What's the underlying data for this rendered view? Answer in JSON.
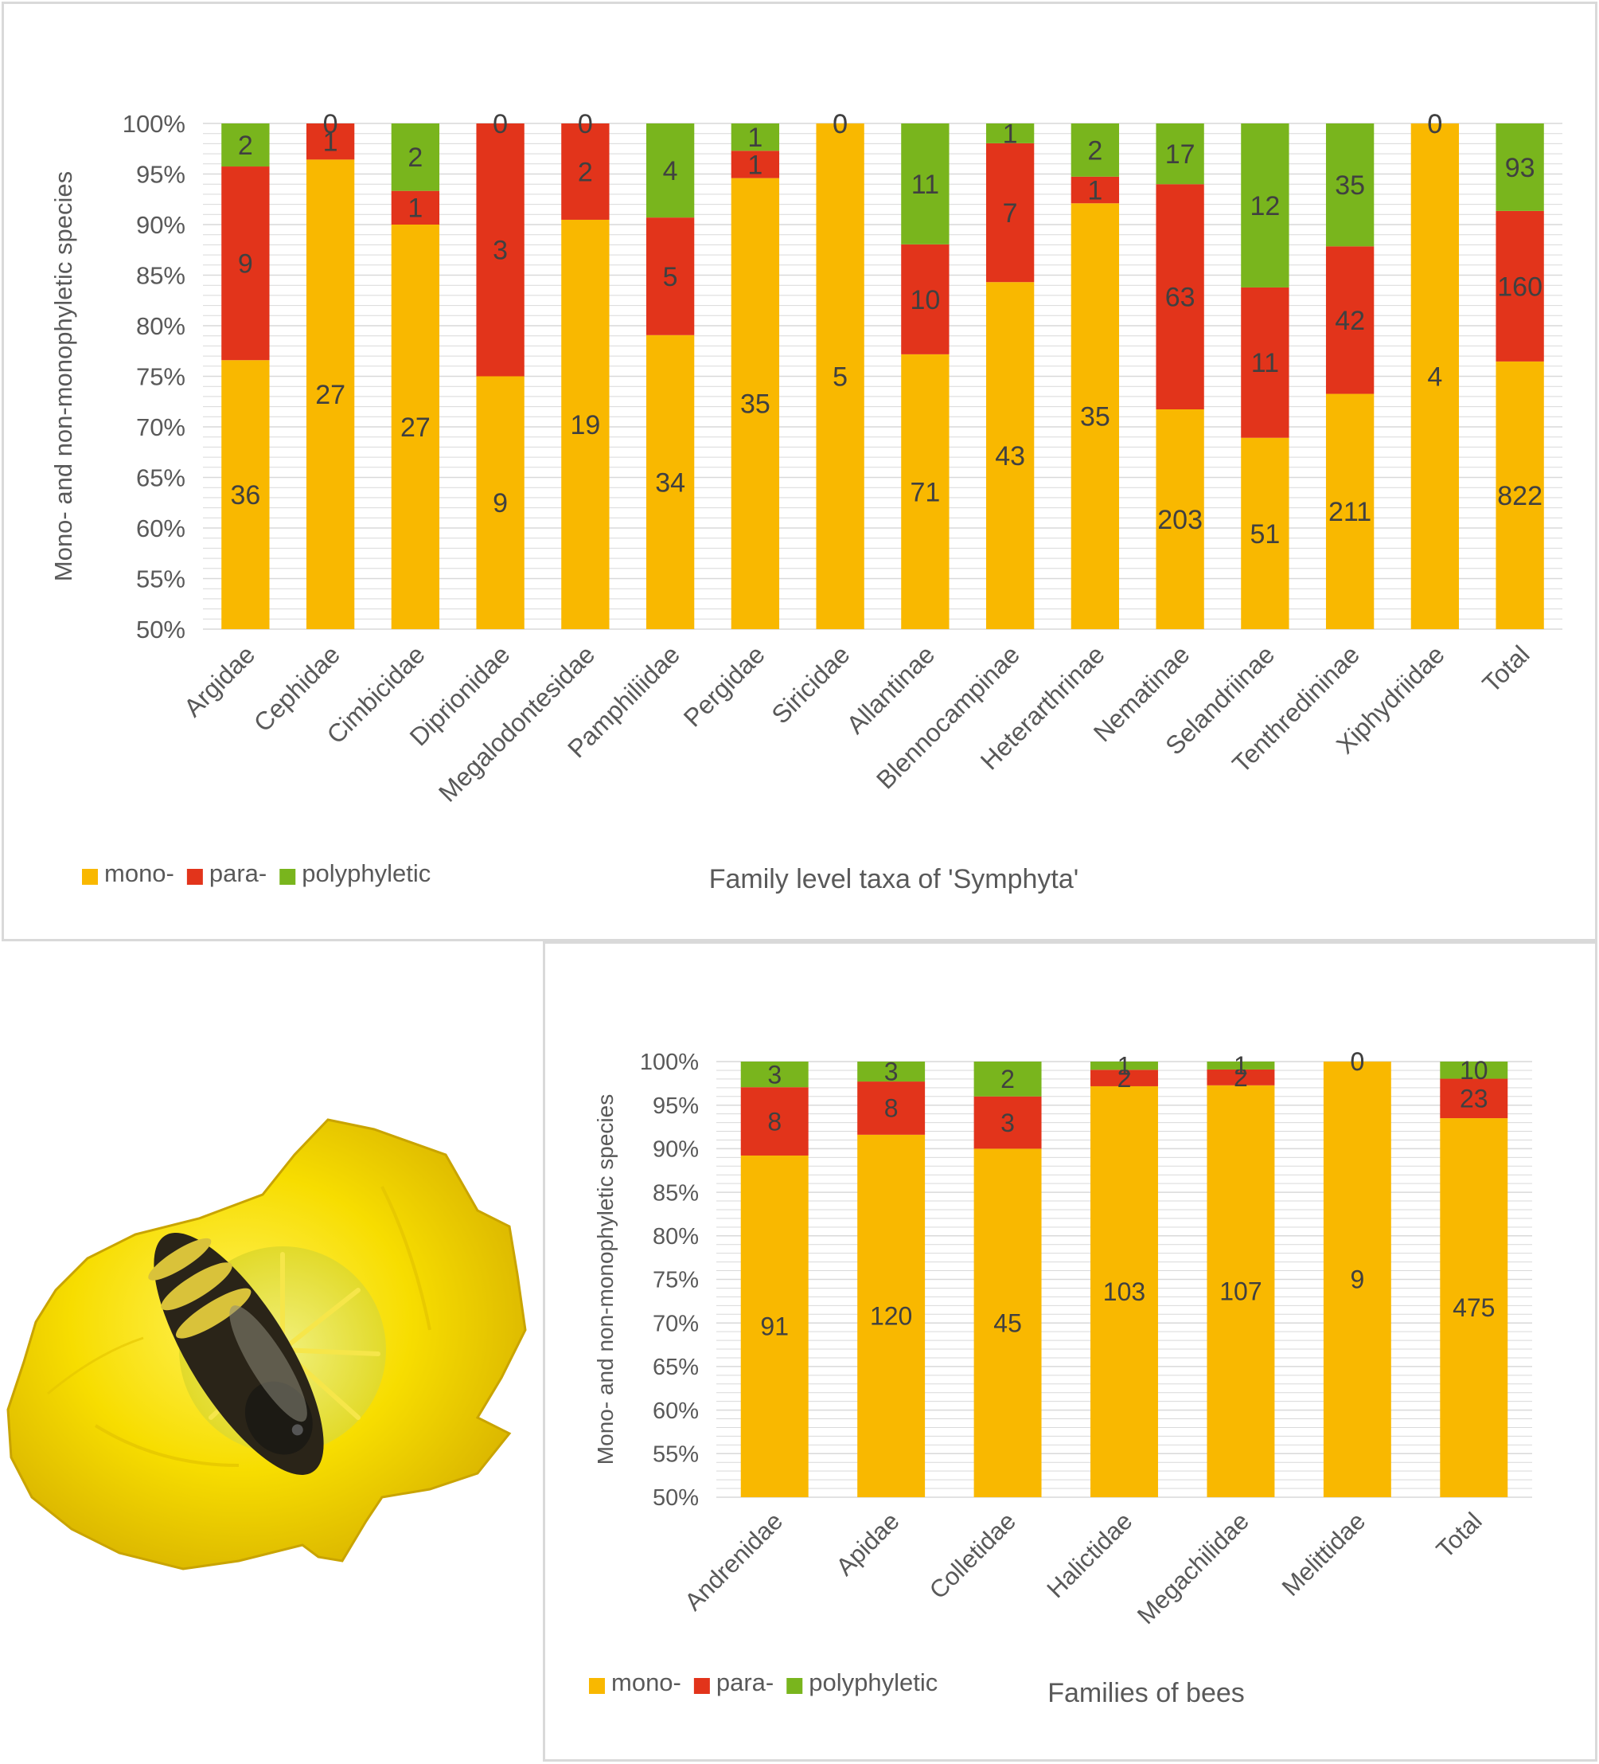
{
  "colors": {
    "mono": "#f9b800",
    "para": "#e2341b",
    "poly": "#79b51d",
    "grid": "#d9d9d9",
    "text": "#595959",
    "label": "#404040"
  },
  "chart_data": [
    {
      "type": "bar",
      "stacked": true,
      "normalized": true,
      "xlabel": "Family level taxa of 'Symphyta'",
      "ylabel": "Mono- and non-monophyletic species",
      "ylim": [
        0.5,
        1.0
      ],
      "yticks": [
        "50%",
        "55%",
        "60%",
        "65%",
        "70%",
        "75%",
        "80%",
        "85%",
        "90%",
        "95%",
        "100%"
      ],
      "legend": "bottom-left",
      "grid": true,
      "categories": [
        "Argidae",
        "Cephidae",
        "Cimbicidae",
        "Diprionidae",
        "Megalodontesidae",
        "Pamphiliidae",
        "Pergidae",
        "Siricidae",
        "Allantinae",
        "Blennocampinae",
        "Heterarthrinae",
        "Nematinae",
        "Selandriinae",
        "Tenthredininae",
        "Xiphydriidae",
        "Total"
      ],
      "series": [
        {
          "name": "mono-",
          "values": [
            36,
            27,
            27,
            9,
            19,
            34,
            35,
            5,
            71,
            43,
            35,
            203,
            51,
            211,
            4,
            822
          ]
        },
        {
          "name": "para-",
          "values": [
            9,
            1,
            1,
            3,
            2,
            5,
            1,
            0,
            10,
            7,
            1,
            63,
            11,
            42,
            0,
            160
          ]
        },
        {
          "name": "polyphyletic",
          "values": [
            2,
            0,
            2,
            0,
            0,
            4,
            1,
            0,
            11,
            1,
            2,
            17,
            12,
            35,
            0,
            93
          ]
        }
      ]
    },
    {
      "type": "bar",
      "stacked": true,
      "normalized": true,
      "xlabel": "Families of bees",
      "ylabel": "Mono- and non-monophyletic species",
      "ylim": [
        0.5,
        1.0
      ],
      "yticks": [
        "50%",
        "55%",
        "60%",
        "65%",
        "70%",
        "75%",
        "80%",
        "85%",
        "90%",
        "95%",
        "100%"
      ],
      "legend": "bottom-left",
      "grid": true,
      "categories": [
        "Andrenidae",
        "Apidae",
        "Colletidae",
        "Halictidae",
        "Megachilidae",
        "Melittidae",
        "Total"
      ],
      "series": [
        {
          "name": "mono-",
          "values": [
            91,
            120,
            45,
            103,
            107,
            9,
            475
          ]
        },
        {
          "name": "para-",
          "values": [
            8,
            8,
            3,
            2,
            2,
            0,
            23
          ]
        },
        {
          "name": "polyphyletic",
          "values": [
            3,
            3,
            2,
            1,
            1,
            0,
            10
          ]
        }
      ]
    }
  ]
}
